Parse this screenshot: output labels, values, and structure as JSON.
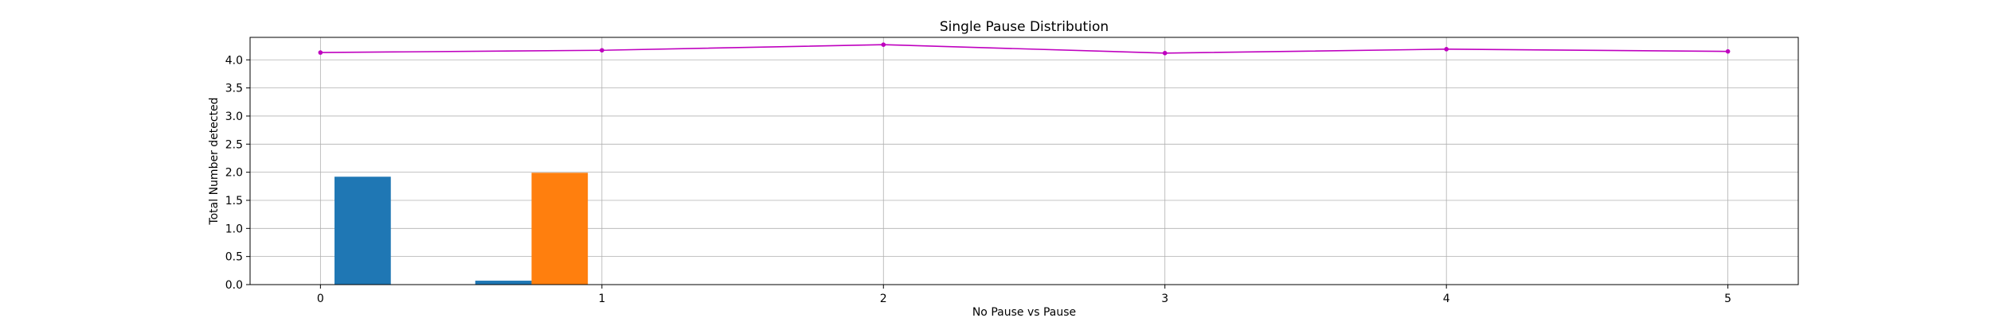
{
  "chart_data": {
    "type": "bar",
    "title": "Single Pause Distribution",
    "xlabel": "No Pause vs Pause",
    "ylabel": "Total Number detected",
    "xlim": [
      -0.25,
      5.25
    ],
    "ylim": [
      0,
      4.4
    ],
    "xticks": [
      0,
      1,
      2,
      3,
      4,
      5
    ],
    "xtick_labels": [
      "0",
      "1",
      "2",
      "3",
      "4",
      "5"
    ],
    "yticks": [
      0.0,
      0.5,
      1.0,
      1.5,
      2.0,
      2.5,
      3.0,
      3.5,
      4.0
    ],
    "ytick_labels": [
      "0.0",
      "0.5",
      "1.0",
      "1.5",
      "2.0",
      "2.5",
      "3.0",
      "3.5",
      "4.0"
    ],
    "grid": true,
    "bar_width": 0.2,
    "series": [
      {
        "kind": "bar",
        "color": "#1f77b4",
        "x": [
          0.15,
          0.65
        ],
        "values": [
          1.92,
          0.07
        ]
      },
      {
        "kind": "bar",
        "color": "#ff7f0e",
        "x": [
          0.85
        ],
        "values": [
          1.99
        ]
      },
      {
        "kind": "line",
        "color": "#bf00bf",
        "marker": "dot",
        "x": [
          0,
          1,
          2,
          3,
          4,
          5
        ],
        "values": [
          4.13,
          4.17,
          4.27,
          4.12,
          4.19,
          4.15
        ]
      }
    ]
  }
}
